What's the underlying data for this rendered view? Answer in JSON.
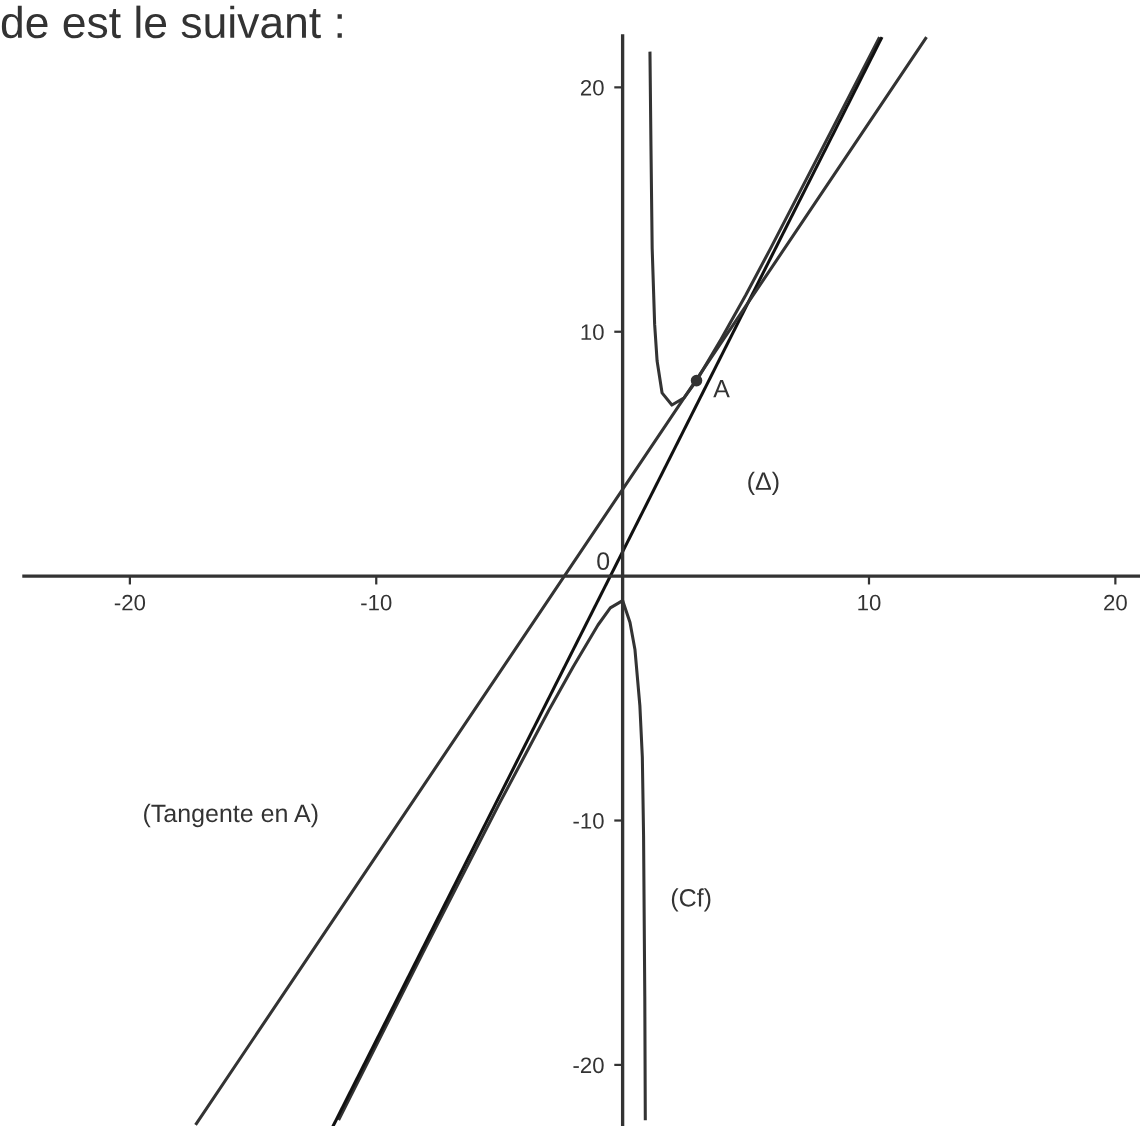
{
  "chart_data": {
    "type": "line",
    "title": "de est le suivant :",
    "xlim": [
      -24.3,
      21
    ],
    "ylim": [
      -22.5,
      22.1
    ],
    "xticks": [
      -20,
      -10,
      10,
      20
    ],
    "yticks": [
      -20,
      -10,
      10,
      20
    ],
    "grid": false,
    "legend": false,
    "marker": "none",
    "line_style": "solid",
    "series": [
      {
        "color": "#333333",
        "x": [
          1.11,
          1.15,
          1.2,
          1.3,
          1.4,
          1.6,
          2,
          2.5,
          3,
          4,
          5,
          6,
          8,
          10.4
        ],
        "values": [
          21.4,
          17.6,
          13.4,
          10.3,
          8.8,
          7.5,
          7,
          7.3,
          8,
          9.7,
          11.5,
          13.4,
          17.3,
          22
        ]
      },
      {
        "color": "#333333",
        "x": [
          -11.5,
          -8,
          -5,
          -3,
          -2,
          -1,
          -0.5,
          0,
          0.3,
          0.5,
          0.7,
          0.8,
          0.85,
          0.9,
          0.92
        ],
        "values": [
          -22.2,
          -15.2,
          -9.3,
          -5.5,
          -3.7,
          -2,
          -1.3,
          -1,
          -1.9,
          -3,
          -5.3,
          -7.4,
          -10.6,
          -17.2,
          -22.2
        ]
      },
      {
        "color": "#111111",
        "x": [
          -11.75,
          10.5
        ],
        "values": [
          -22.5,
          22
        ]
      },
      {
        "color": "#333333",
        "x": [
          -17.3,
          12.3
        ],
        "values": [
          -22.4,
          22
        ]
      },
      {
        "type": "scatter",
        "marker": "circle",
        "color": "#333333",
        "x": [
          3
        ],
        "values": [
          8
        ]
      }
    ],
    "annotations": [
      {
        "text": "A",
        "x": 3,
        "y": 8
      },
      "(Δ)",
      "(Tangente en A)",
      "(Cf)",
      "0"
    ]
  }
}
